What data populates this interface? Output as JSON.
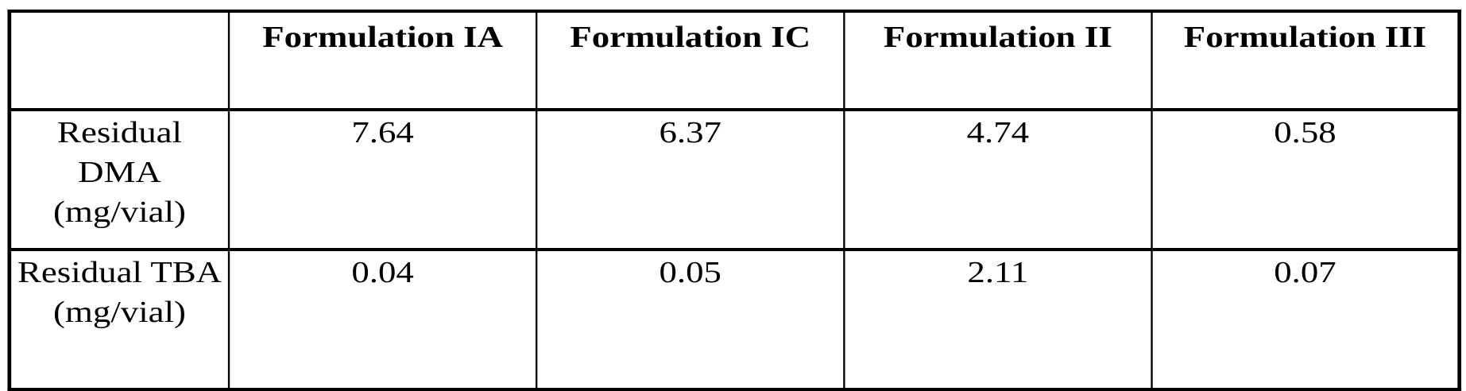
{
  "table": {
    "headers": [
      "",
      "Formulation IA",
      "Formulation IC",
      "Formulation II",
      "Formulation III"
    ],
    "rows": [
      {
        "label": "Residual DMA (mg/vial)",
        "values": [
          "7.64",
          "6.37",
          "4.74",
          "0.58"
        ]
      },
      {
        "label": "Residual TBA (mg/vial)",
        "values": [
          "0.04",
          "0.05",
          "2.11",
          "0.07"
        ]
      }
    ]
  }
}
